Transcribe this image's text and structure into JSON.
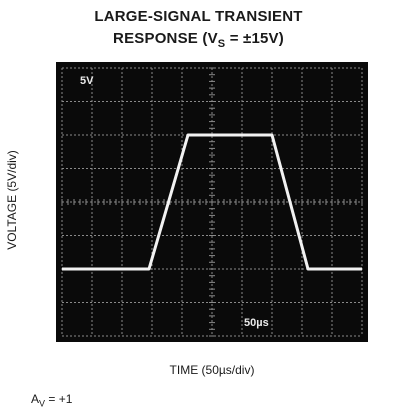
{
  "chart_data": {
    "type": "line",
    "title_line1": "LARGE-SIGNAL TRANSIENT",
    "title_line2_prefix": "RESPONSE (V",
    "title_line2_sub": "S",
    "title_line2_suffix": " = ±15V)",
    "xlabel": "TIME (50µs/div)",
    "ylabel": "VOLTAGE (5V/div)",
    "screen_labels": {
      "vertical_scale": "5V",
      "time_scale": "50µs"
    },
    "note_prefix": "A",
    "note_sub": "V",
    "note_suffix": " = +1",
    "x_divisions": 10,
    "y_divisions": 8,
    "grid": true,
    "x": [
      0,
      2.9,
      4.2,
      7.0,
      8.2,
      10
    ],
    "y": [
      -10,
      -10,
      10,
      10,
      -10,
      -10
    ],
    "ylim": [
      -20,
      20
    ],
    "xlim": [
      0,
      10
    ],
    "colors": {
      "screen": "#0a0a0a",
      "grid": "#8a8a8a",
      "trace": "#f2f2f2"
    }
  }
}
